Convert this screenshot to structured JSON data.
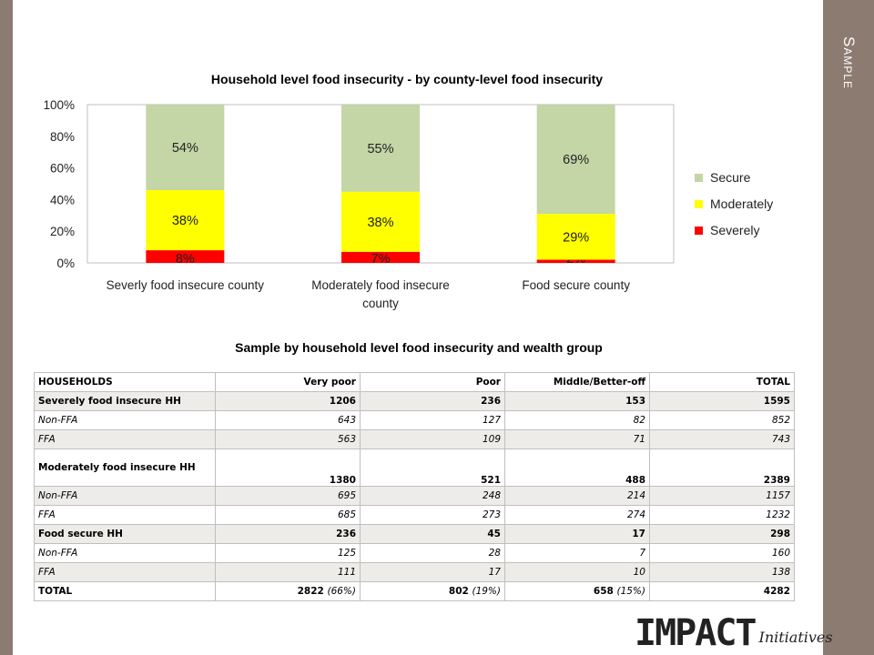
{
  "slide": {
    "side_title": "Sample"
  },
  "chart_data": {
    "type": "bar",
    "stacked": true,
    "title": "Household level food insecurity - by county-level food insecurity",
    "categories": [
      [
        "Severly food insecure county"
      ],
      [
        "Moderately food insecure",
        "county"
      ],
      [
        "Food secure county"
      ]
    ],
    "series": [
      {
        "name": "Severely",
        "color": "#ff0000",
        "values": [
          8,
          7,
          2
        ],
        "labels": [
          "8%",
          "7%",
          "2%"
        ]
      },
      {
        "name": "Moderately",
        "color": "#ffff00",
        "values": [
          38,
          38,
          29
        ],
        "labels": [
          "38%",
          "38%",
          "29%"
        ]
      },
      {
        "name": "Secure",
        "color": "#c4d5a6",
        "values": [
          54,
          55,
          69
        ],
        "labels": [
          "54%",
          "55%",
          "69%"
        ]
      }
    ],
    "legend_order": [
      "Secure",
      "Moderately",
      "Severely"
    ],
    "legend_position": "right",
    "ylim": [
      0,
      100
    ],
    "yticks": [
      "0%",
      "20%",
      "40%",
      "60%",
      "80%",
      "100%"
    ],
    "grid": false
  },
  "table": {
    "title": "Sample by household level food insecurity and wealth group",
    "headers": [
      "HOUSEHOLDS",
      "Very poor",
      "Poor",
      "Middle/Better-off",
      "TOTAL"
    ],
    "rows": [
      {
        "style": "bold shade",
        "cells": [
          "Severely food insecure HH",
          "1206",
          "236",
          "153",
          "1595"
        ]
      },
      {
        "style": "italic",
        "cells": [
          "Non-FFA",
          "643",
          "127",
          "82",
          "852"
        ]
      },
      {
        "style": "italic shade",
        "cells": [
          "FFA",
          "563",
          "109",
          "71",
          "743"
        ]
      },
      {
        "style": "bold tall",
        "cells": [
          "Moderately food insecure HH",
          "1380",
          "521",
          "488",
          "2389"
        ]
      },
      {
        "style": "italic shade",
        "cells": [
          "Non-FFA",
          "695",
          "248",
          "214",
          "1157"
        ]
      },
      {
        "style": "italic",
        "cells": [
          "FFA",
          "685",
          "273",
          "274",
          "1232"
        ]
      },
      {
        "style": "bold shade",
        "cells": [
          "Food secure HH",
          "236",
          "45",
          "17",
          "298"
        ]
      },
      {
        "style": "italic",
        "cells": [
          "Non-FFA",
          "125",
          "28",
          "7",
          "160"
        ]
      },
      {
        "style": "italic shade",
        "cells": [
          "FFA",
          "111",
          "17",
          "10",
          "138"
        ]
      }
    ],
    "total_row": {
      "label": "TOTAL",
      "cells": [
        {
          "value": "2822",
          "pct": "(66%)"
        },
        {
          "value": "802",
          "pct": "(19%)"
        },
        {
          "value": "658",
          "pct": "(15%)"
        },
        {
          "value": "4282",
          "pct": ""
        }
      ]
    }
  },
  "logo": {
    "main": "IMPACT",
    "sub": "Initiatives"
  }
}
